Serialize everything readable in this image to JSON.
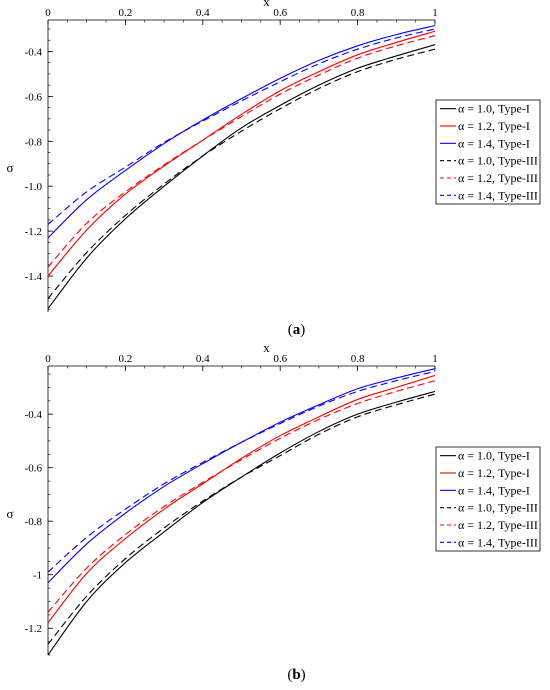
{
  "chart_data": [
    {
      "type": "line",
      "panel_label": "a",
      "xlabel": "x",
      "ylabel": "σ",
      "xlim": [
        0,
        1
      ],
      "ylim": [
        -1.56,
        -0.26
      ],
      "x_ticks": [
        0,
        0.2,
        0.4,
        0.6,
        0.8,
        1
      ],
      "x_tick_labels": [
        "0",
        "0.2",
        "0.4",
        "0.6",
        "0.8",
        "1"
      ],
      "y_ticks": [
        -1.4,
        -1.2,
        -1.0,
        -0.8,
        -0.6,
        -0.4
      ],
      "y_tick_labels": [
        "-1.4",
        "-1.2",
        "-1.0",
        "-0.8",
        "-0.6",
        "-0.4"
      ],
      "x_axis_position": "top",
      "legend_position": "right",
      "x": [
        0,
        0.1,
        0.2,
        0.3,
        0.4,
        0.5,
        0.6,
        0.7,
        0.8,
        0.9,
        1.0
      ],
      "series": [
        {
          "name": "α = 1.0, Type-I",
          "color": "#000000",
          "dash": "solid",
          "values": [
            -1.545,
            -1.32,
            -1.145,
            -1.0,
            -0.865,
            -0.74,
            -0.64,
            -0.55,
            -0.475,
            -0.42,
            -0.37
          ]
        },
        {
          "name": "α = 1.2, Type-I",
          "color": "#ff0000",
          "dash": "solid",
          "values": [
            -1.4,
            -1.195,
            -1.035,
            -0.91,
            -0.795,
            -0.68,
            -0.575,
            -0.49,
            -0.415,
            -0.36,
            -0.31
          ]
        },
        {
          "name": "α = 1.4, Type-I",
          "color": "#0000ff",
          "dash": "solid",
          "values": [
            -1.23,
            -1.06,
            -0.93,
            -0.81,
            -0.705,
            -0.61,
            -0.52,
            -0.44,
            -0.375,
            -0.325,
            -0.285
          ]
        },
        {
          "name": "α = 1.0, Type-III",
          "color": "#000000",
          "dash": "dashed",
          "values": [
            -1.5,
            -1.295,
            -1.13,
            -0.99,
            -0.865,
            -0.755,
            -0.655,
            -0.565,
            -0.49,
            -0.435,
            -0.39
          ]
        },
        {
          "name": "α = 1.2, Type-III",
          "color": "#ff0000",
          "dash": "dashed",
          "values": [
            -1.36,
            -1.165,
            -1.025,
            -0.905,
            -0.795,
            -0.69,
            -0.59,
            -0.505,
            -0.43,
            -0.375,
            -0.33
          ]
        },
        {
          "name": "α = 1.4, Type-III",
          "color": "#0000ff",
          "dash": "dashed",
          "values": [
            -1.17,
            -1.025,
            -0.915,
            -0.805,
            -0.71,
            -0.62,
            -0.535,
            -0.455,
            -0.39,
            -0.34,
            -0.3
          ]
        }
      ]
    },
    {
      "type": "line",
      "panel_label": "b",
      "xlabel": "x",
      "ylabel": "σ",
      "xlim": [
        0,
        1
      ],
      "ylim": [
        -1.3,
        -0.22
      ],
      "x_ticks": [
        0,
        0.2,
        0.4,
        0.6,
        0.8,
        1
      ],
      "x_tick_labels": [
        "0",
        "0.2",
        "0.4",
        "0.6",
        "0.8",
        "1"
      ],
      "y_ticks": [
        -1.2,
        -1.0,
        -0.8,
        -0.6,
        -0.4
      ],
      "y_tick_labels": [
        "-1.2",
        "-1",
        "-0.8",
        "-0.6",
        "-0.4"
      ],
      "x_axis_position": "top",
      "legend_position": "right",
      "x": [
        0,
        0.1,
        0.2,
        0.3,
        0.4,
        0.5,
        0.6,
        0.7,
        0.8,
        0.9,
        1.0
      ],
      "series": [
        {
          "name": "α = 1.0, Type-I",
          "color": "#000000",
          "dash": "solid",
          "values": [
            -1.3,
            -1.1,
            -0.955,
            -0.84,
            -0.73,
            -0.635,
            -0.545,
            -0.465,
            -0.4,
            -0.355,
            -0.315
          ]
        },
        {
          "name": "α = 1.2, Type-I",
          "color": "#ff0000",
          "dash": "solid",
          "values": [
            -1.18,
            -0.995,
            -0.865,
            -0.755,
            -0.66,
            -0.565,
            -0.48,
            -0.41,
            -0.345,
            -0.3,
            -0.255
          ]
        },
        {
          "name": "α = 1.4, Type-I",
          "color": "#0000ff",
          "dash": "solid",
          "values": [
            -1.03,
            -0.885,
            -0.77,
            -0.67,
            -0.585,
            -0.505,
            -0.43,
            -0.365,
            -0.305,
            -0.265,
            -0.23
          ]
        },
        {
          "name": "α = 1.0, Type-III",
          "color": "#000000",
          "dash": "dashed",
          "values": [
            -1.26,
            -1.08,
            -0.94,
            -0.825,
            -0.725,
            -0.635,
            -0.555,
            -0.475,
            -0.41,
            -0.365,
            -0.325
          ]
        },
        {
          "name": "α = 1.2, Type-III",
          "color": "#ff0000",
          "dash": "dashed",
          "values": [
            -1.14,
            -0.975,
            -0.85,
            -0.745,
            -0.655,
            -0.57,
            -0.49,
            -0.42,
            -0.36,
            -0.315,
            -0.275
          ]
        },
        {
          "name": "α = 1.4, Type-III",
          "color": "#0000ff",
          "dash": "dashed",
          "values": [
            -0.99,
            -0.86,
            -0.755,
            -0.66,
            -0.58,
            -0.505,
            -0.435,
            -0.37,
            -0.315,
            -0.275,
            -0.24
          ]
        }
      ]
    }
  ]
}
